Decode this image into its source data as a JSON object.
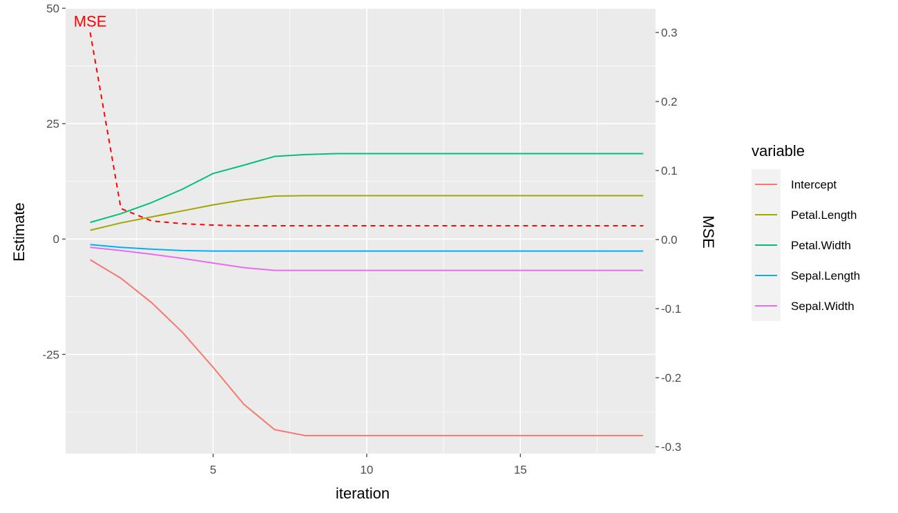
{
  "chart_data": {
    "type": "line",
    "xlabel": "iteration",
    "ylabel": "Estimate",
    "y2label": "MSE",
    "xlim": [
      0.2,
      19.4
    ],
    "ylim": [
      -46.5,
      50
    ],
    "y2lim": [
      -0.31,
      0.335
    ],
    "x_ticks": [
      5,
      10,
      15
    ],
    "x_tick_labels": [
      "5",
      "10",
      "15"
    ],
    "y_ticks": [
      -25,
      0,
      25,
      50
    ],
    "y_tick_labels": [
      "-25",
      "0",
      "25",
      "50"
    ],
    "y2_ticks": [
      -0.3,
      -0.2,
      -0.1,
      0.0,
      0.1,
      0.2,
      0.3
    ],
    "y2_tick_labels": [
      "-0.3",
      "-0.2",
      "-0.1",
      "0.0",
      "0.1",
      "0.2",
      "0.3"
    ],
    "legend": {
      "title": "variable",
      "position": "right"
    },
    "x": [
      1,
      2,
      3,
      4,
      5,
      6,
      7,
      8,
      9,
      10,
      11,
      12,
      13,
      14,
      15,
      16,
      17,
      18,
      19
    ],
    "series": [
      {
        "name": "Intercept",
        "color": "#F8766D",
        "values": [
          -4.5,
          -8.5,
          -13.8,
          -20.2,
          -27.8,
          -35.8,
          -41.3,
          -42.6,
          -42.6,
          -42.6,
          -42.6,
          -42.6,
          -42.6,
          -42.6,
          -42.6,
          -42.6,
          -42.6,
          -42.6,
          -42.6
        ]
      },
      {
        "name": "Petal.Length",
        "color": "#A3A500",
        "values": [
          1.9,
          3.5,
          4.8,
          6.1,
          7.4,
          8.5,
          9.3,
          9.4,
          9.4,
          9.4,
          9.4,
          9.4,
          9.4,
          9.4,
          9.4,
          9.4,
          9.4,
          9.4,
          9.4
        ]
      },
      {
        "name": "Petal.Width",
        "color": "#00BF7D",
        "values": [
          3.6,
          5.5,
          7.9,
          10.8,
          14.2,
          16.0,
          17.9,
          18.3,
          18.5,
          18.5,
          18.5,
          18.5,
          18.5,
          18.5,
          18.5,
          18.5,
          18.5,
          18.5,
          18.5
        ]
      },
      {
        "name": "Sepal.Length",
        "color": "#00B0F6",
        "values": [
          -1.2,
          -1.8,
          -2.2,
          -2.5,
          -2.6,
          -2.6,
          -2.6,
          -2.6,
          -2.6,
          -2.6,
          -2.6,
          -2.6,
          -2.6,
          -2.6,
          -2.6,
          -2.6,
          -2.6,
          -2.6,
          -2.6
        ]
      },
      {
        "name": "Sepal.Width",
        "color": "#E76BF3",
        "values": [
          -1.8,
          -2.5,
          -3.3,
          -4.2,
          -5.2,
          -6.2,
          -6.8,
          -6.8,
          -6.8,
          -6.8,
          -6.8,
          -6.8,
          -6.8,
          -6.8,
          -6.8,
          -6.8,
          -6.8,
          -6.8,
          -6.8
        ]
      }
    ],
    "mse_series": {
      "name": "MSE",
      "color": "#FF0000",
      "style": "dashed",
      "axis": "secondary",
      "values": [
        0.3,
        0.045,
        0.027,
        0.023,
        0.021,
        0.02,
        0.02,
        0.02,
        0.02,
        0.02,
        0.02,
        0.02,
        0.02,
        0.02,
        0.02,
        0.02,
        0.02,
        0.02,
        0.02
      ]
    },
    "annotations": [
      {
        "text": "MSE",
        "x": 1,
        "y": 46,
        "color": "#FF0000"
      }
    ]
  }
}
